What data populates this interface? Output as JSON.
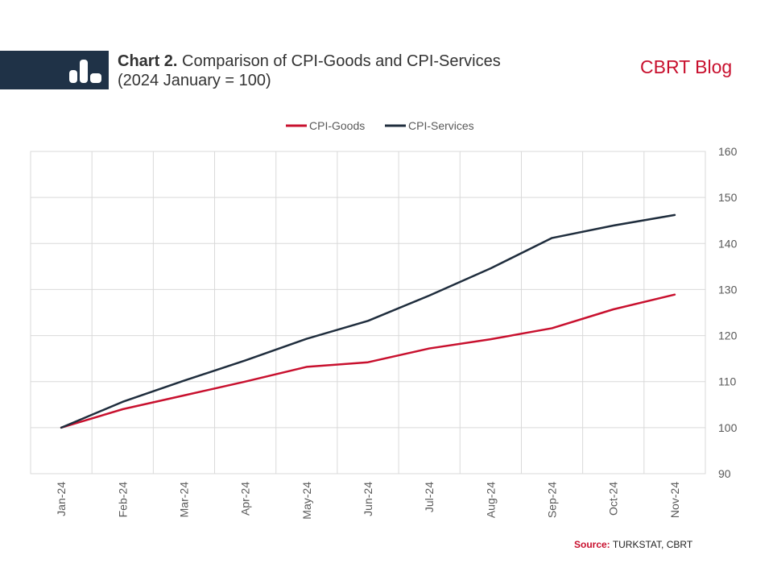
{
  "header": {
    "title_bold": "Chart 2.",
    "title_rest": "Comparison of CPI-Goods and CPI-Services",
    "subtitle": "(2024 January = 100)",
    "brand": "CBRT Blog"
  },
  "source": {
    "label": "Source:",
    "text": "TURKSTAT, CBRT"
  },
  "colors": {
    "header_band": "#1f3247",
    "goods": "#c8102e",
    "services": "#1f2d3d",
    "brand": "#c8102e"
  },
  "chart_data": {
    "type": "line",
    "title": "Comparison of CPI-Goods and CPI-Services",
    "subtitle": "(2024 January = 100)",
    "categories": [
      "Jan-24",
      "Feb-24",
      "Mar-24",
      "Apr-24",
      "May-24",
      "Jun-24",
      "Jul-24",
      "Aug-24",
      "Sep-24",
      "Oct-24",
      "Nov-24"
    ],
    "series": [
      {
        "name": "CPI-Goods",
        "color": "#c8102e",
        "values": [
          100,
          104,
          107,
          110,
          113.2,
          114.2,
          117.2,
          119.2,
          121.6,
          125.7,
          128.9
        ]
      },
      {
        "name": "CPI-Services",
        "color": "#1f2d3d",
        "values": [
          100,
          105.6,
          110.2,
          114.6,
          119.3,
          123.2,
          128.7,
          134.6,
          141.2,
          143.9,
          146.2
        ]
      }
    ],
    "ylim": [
      90,
      160
    ],
    "yticks": [
      90,
      100,
      110,
      120,
      130,
      140,
      150,
      160
    ],
    "y_axis_side": "right",
    "grid": true,
    "legend_position": "top-center",
    "xlabel": "",
    "ylabel": ""
  }
}
